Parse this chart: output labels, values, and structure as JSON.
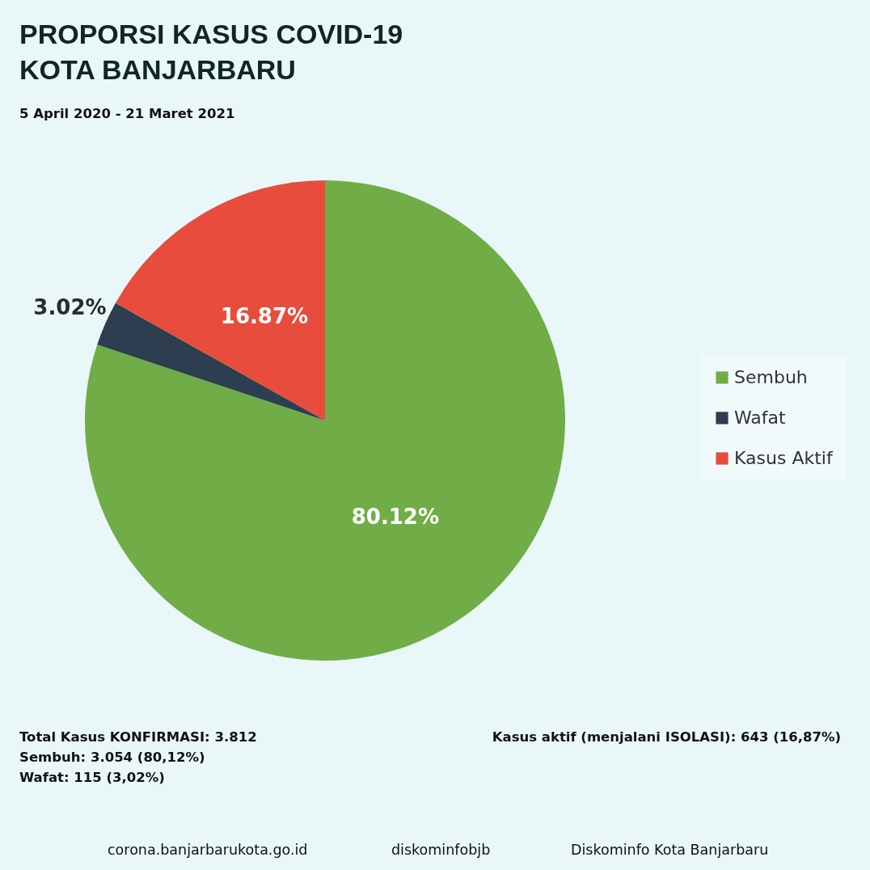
{
  "chart_data": {
    "type": "pie",
    "title": "PROPORSI KASUS COVID-19\nKOTA BANJARBARU",
    "subtitle": "5 April 2020 - 21 Maret 2021",
    "categories": [
      "Sembuh",
      "Wafat",
      "Kasus Aktif"
    ],
    "values": [
      80.12,
      3.02,
      16.87
    ],
    "colors": [
      "#70ad47",
      "#2c3e50",
      "#e74c3c"
    ],
    "value_labels": [
      "80.12%",
      "3.02%",
      "16.87%"
    ],
    "legend": "right",
    "annotations": [
      "Total Kasus KONFIRMASI: 3.812",
      "Sembuh: 3.054 (80,12%)",
      "Wafat: 115 (3,02%)",
      "Kasus aktif (menjalani ISOLASI): 643 (16,87%)",
      "corona.banjarbarukota.go.id",
      "diskominfobjb",
      "Diskominfo Kota Banjarbaru"
    ]
  }
}
